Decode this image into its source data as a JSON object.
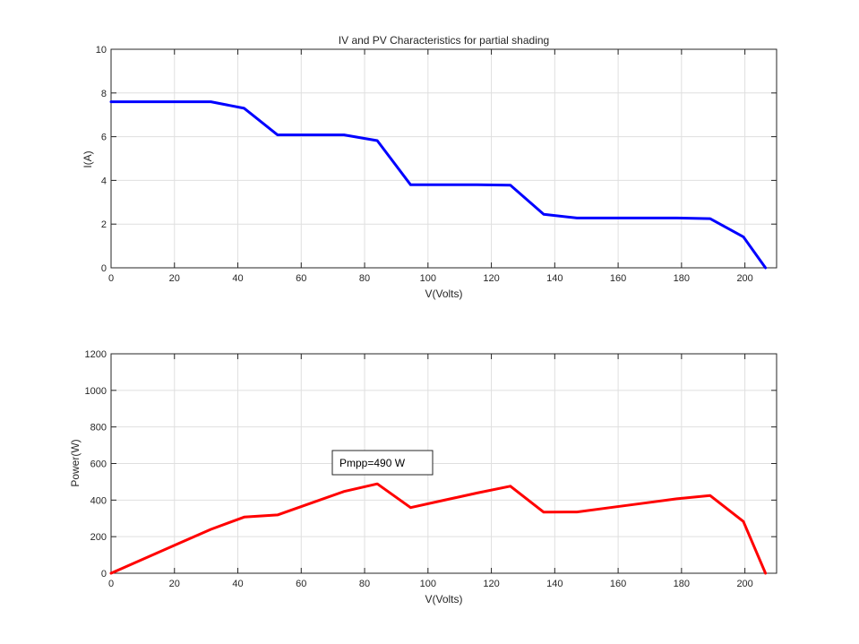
{
  "chart_data": [
    {
      "type": "line",
      "title": "IV and PV  Characteristics for partial shading",
      "xlabel": "V(Volts)",
      "ylabel": "I(A)",
      "xlim": [
        0,
        210
      ],
      "ylim": [
        0,
        10
      ],
      "xticks": [
        0,
        20,
        40,
        60,
        80,
        100,
        120,
        140,
        160,
        180,
        200
      ],
      "yticks": [
        0,
        2,
        4,
        6,
        8,
        10
      ],
      "grid": true,
      "series": [
        {
          "color": "#0000ff",
          "x": [
            0,
            21,
            31.5,
            42,
            52.5,
            63,
            73.5,
            84,
            94.5,
            105,
            115.5,
            126,
            136.5,
            147,
            157.5,
            168,
            178.5,
            189,
            199.5,
            206.5
          ],
          "y": [
            7.6,
            7.6,
            7.6,
            7.3,
            6.08,
            6.08,
            6.08,
            5.82,
            3.8,
            3.8,
            3.8,
            3.78,
            2.45,
            2.28,
            2.28,
            2.28,
            2.28,
            2.25,
            1.42,
            0
          ]
        }
      ]
    },
    {
      "type": "line",
      "title": "",
      "xlabel": "V(Volts)",
      "ylabel": "Power(W)",
      "xlim": [
        0,
        210
      ],
      "ylim": [
        0,
        1200
      ],
      "xticks": [
        0,
        20,
        40,
        60,
        80,
        100,
        120,
        140,
        160,
        180,
        200
      ],
      "yticks": [
        0,
        200,
        400,
        600,
        800,
        1000,
        1200
      ],
      "grid": true,
      "annotation": {
        "text": "Pmpp=490 W",
        "x": 71,
        "y": 600
      },
      "series": [
        {
          "color": "#ff0000",
          "x": [
            0,
            21,
            31.5,
            42,
            52.5,
            63,
            73.5,
            84,
            94.5,
            105,
            115.5,
            126,
            136.5,
            147,
            157.5,
            168,
            178.5,
            189,
            199.5,
            206.5
          ],
          "y": [
            0,
            160,
            240,
            307,
            319,
            383,
            447,
            489,
            359,
            399,
            439,
            476,
            334,
            335,
            359,
            383,
            407,
            425,
            283,
            0
          ]
        }
      ]
    }
  ]
}
